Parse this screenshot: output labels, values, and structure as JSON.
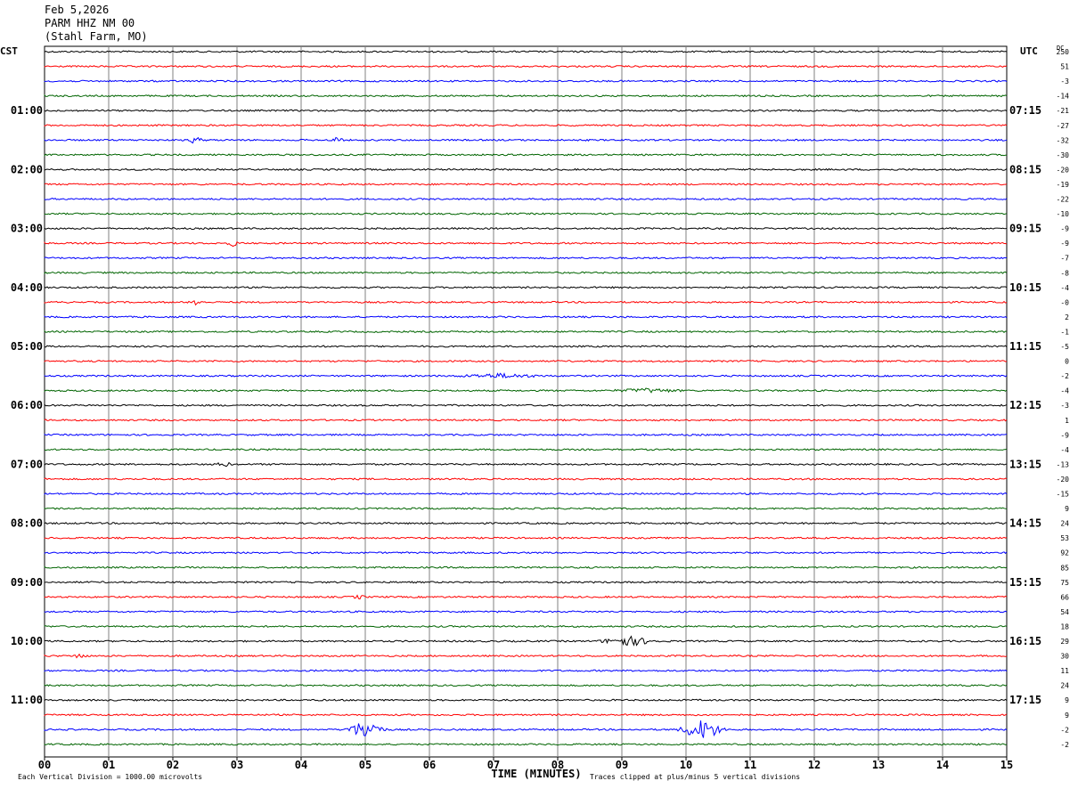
{
  "header": {
    "date": "Feb 5,2026",
    "station": "PARM HHZ NM 00",
    "location": "(Stahl Farm, MO)"
  },
  "left_tz": "CST",
  "right_tz": "UTC",
  "dc_label": "DC",
  "footer": {
    "scale_note": "Each Vertical Division = 1000.00 microvolts",
    "clip_note": "Traces clipped at plus/minus 5 vertical divisions",
    "xlabel": "TIME (MINUTES)"
  },
  "colors": {
    "black": "#000000",
    "red": "#ff0000",
    "blue": "#0000ff",
    "green": "#006400",
    "grid": "#808080"
  },
  "chart_data": {
    "type": "line",
    "xlabel": "TIME (MINUTES)",
    "xlim": [
      0,
      15
    ],
    "x_ticks": [
      "00",
      "01",
      "02",
      "03",
      "04",
      "05",
      "06",
      "07",
      "08",
      "09",
      "10",
      "11",
      "12",
      "13",
      "14",
      "15"
    ],
    "left_hour_labels": [
      "01:00",
      "02:00",
      "03:00",
      "04:00",
      "05:00",
      "06:00",
      "07:00",
      "08:00",
      "09:00",
      "10:00",
      "11:00"
    ],
    "right_hour_labels": [
      "07:15",
      "08:15",
      "09:15",
      "10:15",
      "11:15",
      "12:15",
      "13:15",
      "14:15",
      "15:15",
      "16:15",
      "17:15"
    ],
    "trace_colors": [
      "black",
      "red",
      "blue",
      "green"
    ],
    "dc_values": [
      "250",
      "51",
      "-3",
      "-14",
      "-21",
      "-27",
      "-32",
      "-30",
      "-20",
      "-19",
      "-22",
      "-10",
      "-9",
      "-9",
      "-7",
      "-8",
      "-4",
      "-0",
      "2",
      "-1",
      "-5",
      "0",
      "-2",
      "-4",
      "-3",
      "1",
      "-9",
      "-4",
      "-13",
      "-20",
      "-15",
      "9",
      "24",
      "53",
      "92",
      "85",
      "75",
      "66",
      "54",
      "18",
      "29",
      "30",
      "11",
      "24",
      "9",
      "9",
      "-2",
      "-2"
    ],
    "events": [
      {
        "trace": 6,
        "minute": 2.35,
        "amp": 4
      },
      {
        "trace": 6,
        "minute": 4.55,
        "amp": 3
      },
      {
        "trace": 17,
        "minute": 2.35,
        "amp": 4
      },
      {
        "trace": 13,
        "minute": 2.95,
        "amp": 3
      },
      {
        "trace": 28,
        "minute": 2.8,
        "amp": 3
      },
      {
        "trace": 37,
        "minute": 4.9,
        "amp": 2
      },
      {
        "trace": 40,
        "minute": 9.1,
        "amp": 5,
        "width": 0.5
      },
      {
        "trace": 41,
        "minute": 0.55,
        "amp": 3
      },
      {
        "trace": 22,
        "minute": 7.1,
        "amp": 2,
        "width": 0.8
      },
      {
        "trace": 23,
        "minute": 9.4,
        "amp": 2,
        "width": 0.6
      },
      {
        "trace": 46,
        "minute": 5.0,
        "amp": 10,
        "width": 0.35
      },
      {
        "trace": 46,
        "minute": 10.25,
        "amp": 11,
        "width": 0.4
      }
    ]
  }
}
